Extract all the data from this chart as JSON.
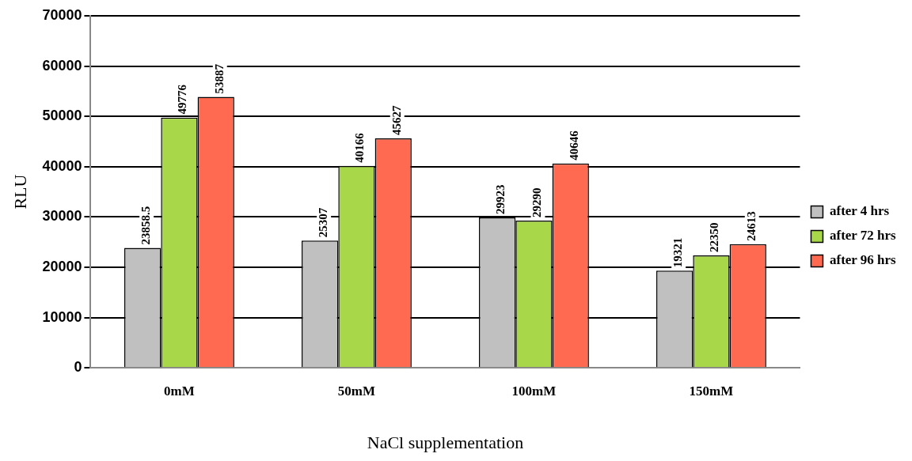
{
  "chart_data": {
    "type": "bar",
    "xlabel": "NaCl supplementation",
    "ylabel": "RLU",
    "categories": [
      "0mM",
      "50mM",
      "100mM",
      "150mM"
    ],
    "series": [
      {
        "name": "after 4 hrs",
        "color": "#c0c0c0",
        "values": [
          23858.5,
          25307,
          29923,
          19321
        ]
      },
      {
        "name": "after 72 hrs",
        "color": "#a8d84a",
        "values": [
          49776,
          40166,
          29290,
          22350
        ]
      },
      {
        "name": "after 96 hrs",
        "color": "#ff6a50",
        "values": [
          53887,
          45627,
          40646,
          24613
        ]
      }
    ],
    "ylim": [
      0,
      70000
    ],
    "yticks": [
      0,
      10000,
      20000,
      30000,
      40000,
      50000,
      60000,
      70000
    ],
    "grid": "y",
    "legend": "right",
    "data_labels": true
  }
}
